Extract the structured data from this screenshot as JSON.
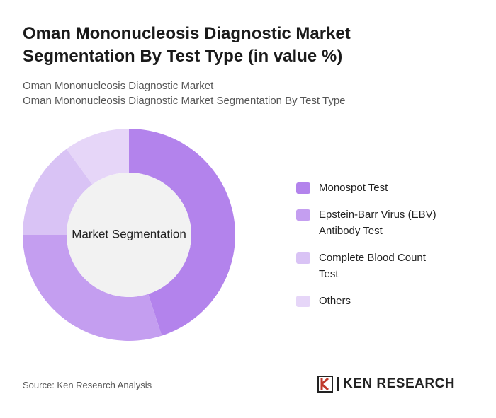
{
  "chart_data": {
    "type": "donut",
    "title": "Oman Mononucleosis Diagnostic Market Segmentation By Test Type (in value %)",
    "subtitle_lines": [
      "Oman Mononucleosis Diagnostic Market",
      "Oman Mononucleosis Diagnostic Market Segmentation By Test Type"
    ],
    "center_label": "Market Segmentation",
    "categories": [
      "Monospot Test",
      "Epstein-Barr Virus (EBV) Antibody Test",
      "Complete Blood Count Test",
      "Others"
    ],
    "values": [
      45,
      30,
      15,
      10
    ],
    "colors": [
      "#b383ec",
      "#c49ef0",
      "#d9c3f5",
      "#e6d6f8"
    ],
    "source": "Source: Ken Research Analysis",
    "logo": "KEN RESEARCH"
  }
}
